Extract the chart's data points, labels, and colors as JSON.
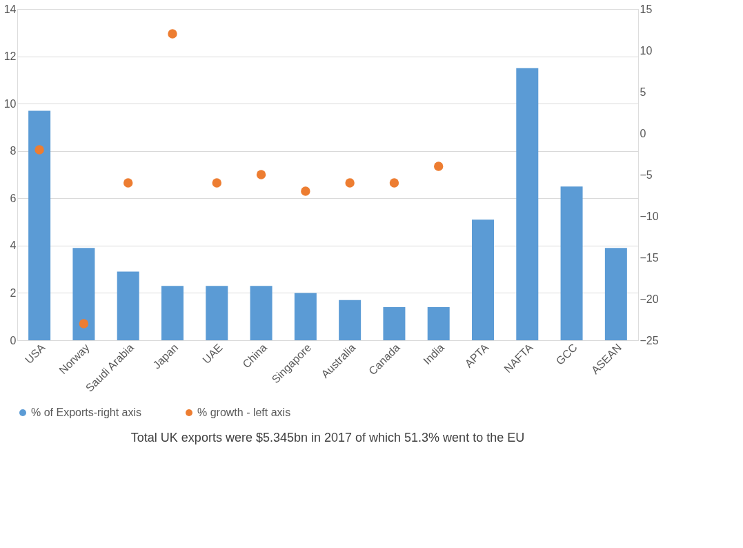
{
  "chart_data": {
    "type": "bar",
    "categories": [
      "USA",
      "Norway",
      "Saudi Arabia",
      "Japan",
      "UAE",
      "China",
      "Singapore",
      "Australia",
      "Canada",
      "India",
      "APTA",
      "NAFTA",
      "GCC",
      "ASEAN"
    ],
    "series": [
      {
        "name": "% of Exports-right axis",
        "color": "#5b9bd5",
        "values": [
          9.7,
          3.9,
          2.9,
          2.3,
          2.3,
          2.3,
          2.0,
          1.7,
          1.4,
          1.4,
          5.1,
          11.5,
          6.5,
          3.9
        ]
      },
      {
        "name": "% growth - left axis",
        "type": "scatter",
        "axis": "y2",
        "color": "#ed7d31",
        "values": [
          -2,
          -23,
          -6,
          12,
          -6,
          -5,
          -7,
          -6,
          -6,
          -4,
          null,
          null,
          null,
          null
        ]
      }
    ],
    "ylim": [
      0,
      14
    ],
    "yticks": [
      0,
      2,
      4,
      6,
      8,
      10,
      12,
      14
    ],
    "y2lim": [
      -25,
      15
    ],
    "y2ticks": [
      -25,
      -20,
      -15,
      -10,
      -5,
      0,
      5,
      10,
      15
    ],
    "grid": "y",
    "legend": "bottom",
    "marker": "circle",
    "annotations": [
      "Total UK exports were $5.345bn in 2017 of which 51.3% went to the EU"
    ]
  }
}
